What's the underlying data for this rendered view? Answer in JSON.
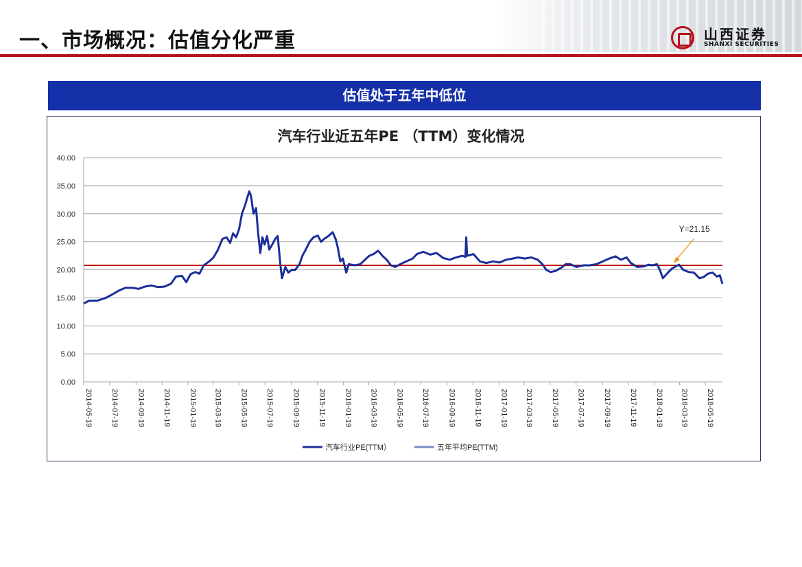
{
  "header": {
    "title": "一、市场概况：估值分化严重",
    "logo_cn": "山西证券",
    "logo_en": "SHANXI SECURITIES"
  },
  "banner": {
    "text": "估值处于五年中低位"
  },
  "colors": {
    "series": "#1a2f9a",
    "average_line": "#c00000",
    "legend_avg": "#7b8cc9",
    "banner": "#1530a8",
    "brand_red": "#b5121b",
    "annotation": "#f0961f"
  },
  "chart_data": {
    "type": "line",
    "title": "汽车行业近五年PE （TTM）变化情况",
    "xlabel": "",
    "ylabel": "",
    "ylim": [
      0,
      40
    ],
    "yticks": [
      "0.00",
      "5.00",
      "10.00",
      "15.00",
      "20.00",
      "25.00",
      "30.00",
      "35.00",
      "40.00"
    ],
    "grid": true,
    "legend_position": "bottom",
    "x_tick_labels": [
      "2014-05-19",
      "2014-07-19",
      "2014-09-19",
      "2014-11-19",
      "2015-01-19",
      "2015-03-19",
      "2015-05-19",
      "2015-07-19",
      "2015-09-19",
      "2015-11-19",
      "2016-01-19",
      "2016-03-19",
      "2016-05-19",
      "2016-07-19",
      "2016-09-19",
      "2016-11-19",
      "2017-01-19",
      "2017-03-19",
      "2017-05-19",
      "2017-07-19",
      "2017-09-19",
      "2017-11-19",
      "2018-01-19",
      "2018-03-19",
      "2018-05-19"
    ],
    "series": [
      {
        "name": "汽车行业PE(TTM）",
        "points": [
          [
            "2014-05-19",
            14.0
          ],
          [
            "2014-06-01",
            14.5
          ],
          [
            "2014-06-20",
            14.5
          ],
          [
            "2014-07-10",
            15.0
          ],
          [
            "2014-07-25",
            15.6
          ],
          [
            "2014-08-10",
            16.3
          ],
          [
            "2014-08-25",
            16.8
          ],
          [
            "2014-09-10",
            16.8
          ],
          [
            "2014-09-25",
            16.6
          ],
          [
            "2014-10-10",
            17.0
          ],
          [
            "2014-10-25",
            17.2
          ],
          [
            "2014-11-10",
            16.9
          ],
          [
            "2014-11-25",
            17.0
          ],
          [
            "2014-12-10",
            17.5
          ],
          [
            "2014-12-22",
            18.8
          ],
          [
            "2015-01-05",
            18.9
          ],
          [
            "2015-01-15",
            17.8
          ],
          [
            "2015-01-25",
            19.2
          ],
          [
            "2015-02-05",
            19.6
          ],
          [
            "2015-02-15",
            19.3
          ],
          [
            "2015-02-25",
            20.8
          ],
          [
            "2015-03-10",
            21.5
          ],
          [
            "2015-03-20",
            22.2
          ],
          [
            "2015-03-30",
            23.5
          ],
          [
            "2015-04-10",
            25.5
          ],
          [
            "2015-04-20",
            25.8
          ],
          [
            "2015-04-28",
            24.8
          ],
          [
            "2015-05-05",
            26.5
          ],
          [
            "2015-05-12",
            25.8
          ],
          [
            "2015-05-19",
            27.2
          ],
          [
            "2015-05-26",
            30.0
          ],
          [
            "2015-06-02",
            31.5
          ],
          [
            "2015-06-08",
            33.0
          ],
          [
            "2015-06-12",
            34.0
          ],
          [
            "2015-06-16",
            33.2
          ],
          [
            "2015-06-22",
            30.0
          ],
          [
            "2015-06-28",
            31.0
          ],
          [
            "2015-07-03",
            26.5
          ],
          [
            "2015-07-08",
            23.0
          ],
          [
            "2015-07-13",
            25.8
          ],
          [
            "2015-07-18",
            24.5
          ],
          [
            "2015-07-24",
            26.0
          ],
          [
            "2015-07-29",
            23.6
          ],
          [
            "2015-08-05",
            24.5
          ],
          [
            "2015-08-12",
            25.5
          ],
          [
            "2015-08-18",
            26.0
          ],
          [
            "2015-08-24",
            21.0
          ],
          [
            "2015-08-28",
            18.5
          ],
          [
            "2015-09-05",
            20.5
          ],
          [
            "2015-09-12",
            19.5
          ],
          [
            "2015-09-20",
            20.0
          ],
          [
            "2015-09-28",
            20.0
          ],
          [
            "2015-10-08",
            21.0
          ],
          [
            "2015-10-15",
            22.5
          ],
          [
            "2015-10-22",
            23.5
          ],
          [
            "2015-11-01",
            25.0
          ],
          [
            "2015-11-10",
            25.8
          ],
          [
            "2015-11-20",
            26.1
          ],
          [
            "2015-11-28",
            25.0
          ],
          [
            "2015-12-05",
            25.5
          ],
          [
            "2015-12-15",
            26.0
          ],
          [
            "2015-12-25",
            26.7
          ],
          [
            "2016-01-01",
            25.5
          ],
          [
            "2016-01-06",
            24.0
          ],
          [
            "2016-01-12",
            21.5
          ],
          [
            "2016-01-18",
            22.0
          ],
          [
            "2016-01-26",
            19.5
          ],
          [
            "2016-02-01",
            21.0
          ],
          [
            "2016-02-15",
            20.8
          ],
          [
            "2016-02-28",
            21.0
          ],
          [
            "2016-03-10",
            21.8
          ],
          [
            "2016-03-20",
            22.5
          ],
          [
            "2016-03-30",
            22.8
          ],
          [
            "2016-04-10",
            23.4
          ],
          [
            "2016-04-20",
            22.5
          ],
          [
            "2016-04-30",
            21.8
          ],
          [
            "2016-05-10",
            20.8
          ],
          [
            "2016-05-20",
            20.5
          ],
          [
            "2016-06-01",
            21.0
          ],
          [
            "2016-06-15",
            21.5
          ],
          [
            "2016-06-30",
            22.0
          ],
          [
            "2016-07-10",
            22.8
          ],
          [
            "2016-07-25",
            23.2
          ],
          [
            "2016-08-10",
            22.7
          ],
          [
            "2016-08-25",
            23.0
          ],
          [
            "2016-09-10",
            22.1
          ],
          [
            "2016-09-25",
            21.8
          ],
          [
            "2016-10-10",
            22.2
          ],
          [
            "2016-10-25",
            22.5
          ],
          [
            "2016-11-01",
            22.3
          ],
          [
            "2016-11-03",
            25.8
          ],
          [
            "2016-11-05",
            22.5
          ],
          [
            "2016-11-20",
            22.8
          ],
          [
            "2016-12-05",
            21.5
          ],
          [
            "2016-12-20",
            21.2
          ],
          [
            "2017-01-05",
            21.5
          ],
          [
            "2017-01-20",
            21.3
          ],
          [
            "2017-02-05",
            21.8
          ],
          [
            "2017-02-20",
            22.0
          ],
          [
            "2017-03-05",
            22.2
          ],
          [
            "2017-03-20",
            22.0
          ],
          [
            "2017-04-05",
            22.2
          ],
          [
            "2017-04-20",
            21.8
          ],
          [
            "2017-05-01",
            21.0
          ],
          [
            "2017-05-10",
            20.0
          ],
          [
            "2017-05-20",
            19.6
          ],
          [
            "2017-06-01",
            19.8
          ],
          [
            "2017-06-15",
            20.4
          ],
          [
            "2017-06-25",
            21.0
          ],
          [
            "2017-07-05",
            21.0
          ],
          [
            "2017-07-20",
            20.5
          ],
          [
            "2017-08-05",
            20.8
          ],
          [
            "2017-08-20",
            20.8
          ],
          [
            "2017-09-05",
            21.0
          ],
          [
            "2017-09-20",
            21.5
          ],
          [
            "2017-10-05",
            22.0
          ],
          [
            "2017-10-20",
            22.4
          ],
          [
            "2017-11-01",
            21.8
          ],
          [
            "2017-11-15",
            22.2
          ],
          [
            "2017-11-25",
            21.2
          ],
          [
            "2017-12-10",
            20.5
          ],
          [
            "2017-12-25",
            20.6
          ],
          [
            "2018-01-05",
            20.9
          ],
          [
            "2018-01-15",
            20.8
          ],
          [
            "2018-01-25",
            21.0
          ],
          [
            "2018-02-01",
            20.0
          ],
          [
            "2018-02-08",
            18.5
          ],
          [
            "2018-02-20",
            19.5
          ],
          [
            "2018-03-01",
            20.2
          ],
          [
            "2018-03-10",
            20.6
          ],
          [
            "2018-03-18",
            20.9
          ],
          [
            "2018-03-28",
            20.0
          ],
          [
            "2018-04-10",
            19.6
          ],
          [
            "2018-04-22",
            19.5
          ],
          [
            "2018-05-05",
            18.5
          ],
          [
            "2018-05-15",
            18.7
          ],
          [
            "2018-05-25",
            19.3
          ],
          [
            "2018-06-05",
            19.5
          ],
          [
            "2018-06-15",
            18.8
          ],
          [
            "2018-06-22",
            19.0
          ],
          [
            "2018-06-28",
            17.5
          ]
        ]
      },
      {
        "name": "五年平均PE(TTM)",
        "value": 20.8
      }
    ],
    "annotation": {
      "text": "Y=21.15",
      "x": "2018-03-05",
      "y": 21.15
    }
  }
}
